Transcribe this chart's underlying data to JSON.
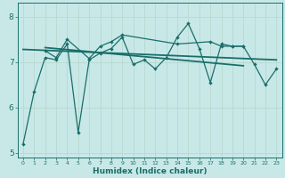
{
  "xlabel": "Humidex (Indice chaleur)",
  "ylabel": "",
  "background_color": "#c8e8e8",
  "grid_color": "#add8d8",
  "line_color": "#1a6e6a",
  "ylim": [
    4.9,
    8.3
  ],
  "xlim": [
    -0.5,
    23.5
  ],
  "yticks": [
    5,
    6,
    7,
    8
  ],
  "xticks": [
    0,
    1,
    2,
    3,
    4,
    5,
    6,
    7,
    8,
    9,
    10,
    11,
    12,
    13,
    14,
    15,
    16,
    17,
    18,
    19,
    20,
    21,
    22,
    23
  ],
  "series1_x": [
    0,
    1,
    2,
    3,
    4,
    5,
    6,
    7,
    8,
    9,
    10,
    11,
    12,
    13,
    14,
    15,
    16,
    17,
    18,
    19,
    20,
    21,
    22,
    23
  ],
  "series1_y": [
    5.2,
    6.35,
    7.1,
    7.05,
    7.4,
    5.45,
    7.05,
    7.2,
    7.3,
    7.55,
    6.95,
    7.05,
    6.85,
    7.1,
    7.55,
    7.85,
    7.3,
    6.55,
    7.4,
    7.35,
    7.35,
    6.95,
    6.5,
    6.85
  ],
  "trend1_x": [
    0,
    23
  ],
  "trend1_y": [
    7.28,
    7.05
  ],
  "series2_x": [
    2,
    3,
    4,
    6,
    7,
    8,
    9,
    14,
    17,
    18,
    19,
    20
  ],
  "series2_y": [
    7.25,
    7.1,
    7.5,
    7.08,
    7.35,
    7.45,
    7.6,
    7.4,
    7.45,
    7.35,
    7.35,
    7.35
  ],
  "trend2_x": [
    2,
    20
  ],
  "trend2_y": [
    7.32,
    6.92
  ]
}
